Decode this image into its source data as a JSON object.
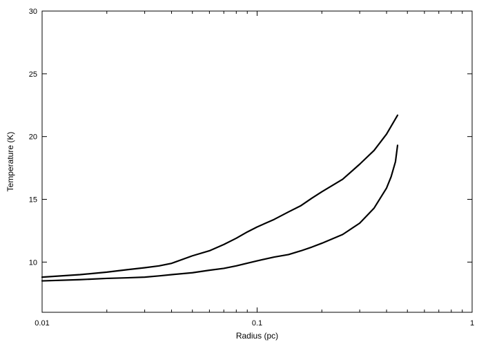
{
  "chart_data": {
    "type": "line",
    "title": "",
    "xlabel": "Radius (pc)",
    "ylabel": "Temperature (K)",
    "xscale": "log",
    "xlim": [
      0.01,
      1
    ],
    "ylim": [
      6,
      30
    ],
    "grid": false,
    "legend": "none",
    "x_ticks": [
      {
        "value": 0.01,
        "label": "0.01"
      },
      {
        "value": 0.1,
        "label": "0.1"
      },
      {
        "value": 1,
        "label": "1"
      }
    ],
    "y_ticks": [
      {
        "value": 10,
        "label": "10"
      },
      {
        "value": 15,
        "label": "15"
      },
      {
        "value": 20,
        "label": "20"
      },
      {
        "value": 25,
        "label": "25"
      },
      {
        "value": 30,
        "label": "30"
      }
    ],
    "series": [
      {
        "color": "#000000",
        "x": [
          0.01,
          0.015,
          0.02,
          0.025,
          0.03,
          0.035,
          0.04,
          0.05,
          0.06,
          0.07,
          0.08,
          0.09,
          0.1,
          0.12,
          0.14,
          0.16,
          0.18,
          0.2,
          0.25,
          0.3,
          0.35,
          0.4,
          0.45
        ],
        "y": [
          8.8,
          9.0,
          9.2,
          9.4,
          9.55,
          9.7,
          9.9,
          10.5,
          10.9,
          11.4,
          11.9,
          12.4,
          12.8,
          13.4,
          14.0,
          14.5,
          15.1,
          15.6,
          16.6,
          17.8,
          18.9,
          20.2,
          21.7
        ]
      },
      {
        "color": "#000000",
        "x": [
          0.01,
          0.015,
          0.02,
          0.025,
          0.03,
          0.035,
          0.04,
          0.05,
          0.06,
          0.07,
          0.08,
          0.1,
          0.12,
          0.14,
          0.16,
          0.18,
          0.2,
          0.25,
          0.3,
          0.35,
          0.4,
          0.42,
          0.44,
          0.45
        ],
        "y": [
          8.5,
          8.6,
          8.7,
          8.75,
          8.8,
          8.9,
          9.0,
          9.15,
          9.35,
          9.5,
          9.7,
          10.1,
          10.4,
          10.6,
          10.9,
          11.2,
          11.5,
          12.2,
          13.1,
          14.3,
          15.9,
          16.8,
          18.0,
          19.3
        ]
      }
    ]
  }
}
